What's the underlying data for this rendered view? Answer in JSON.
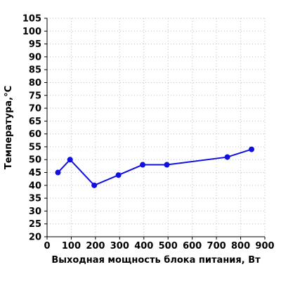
{
  "chart_data": {
    "type": "line",
    "title": "",
    "xlabel": "Выходная мощность блока питания, Вт",
    "ylabel": "Температура,°С",
    "xlim": [
      0,
      900
    ],
    "ylim": [
      20,
      105
    ],
    "x_ticks": [
      0,
      100,
      200,
      300,
      400,
      500,
      600,
      700,
      800,
      900
    ],
    "y_ticks": [
      20,
      25,
      30,
      35,
      40,
      45,
      50,
      55,
      60,
      65,
      70,
      75,
      80,
      85,
      90,
      95,
      100,
      105
    ],
    "grid": true,
    "legend": "none",
    "series": [
      {
        "color": "#1010e0",
        "x": [
          45,
          95,
          195,
          295,
          395,
          495,
          745,
          845
        ],
        "y": [
          45,
          50,
          40,
          44,
          48,
          48,
          51,
          54
        ]
      }
    ]
  }
}
